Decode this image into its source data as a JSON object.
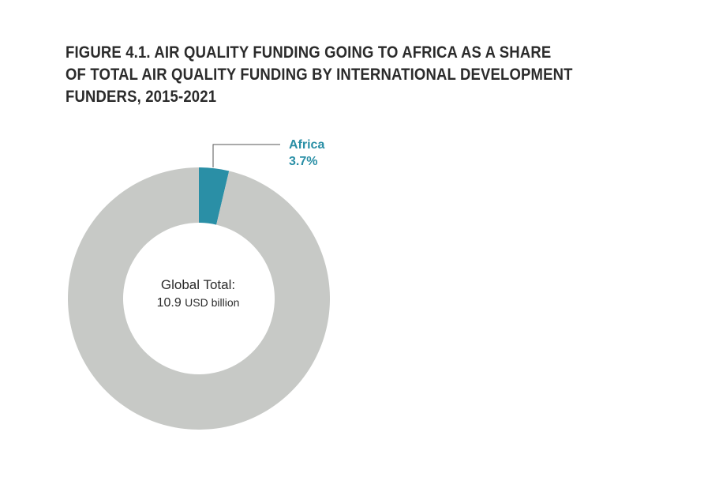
{
  "title_lines": [
    "FIGURE 4.1.  AIR QUALITY FUNDING GOING TO AFRICA AS A SHARE",
    "OF TOTAL AIR QUALITY FUNDING BY INTERNATIONAL DEVELOPMENT",
    "FUNDERS, 2015-2021"
  ],
  "center": {
    "title": "Global Total:",
    "value": "10.9",
    "unit": "USD billion"
  },
  "callout": {
    "label": "Africa",
    "value": "3.7%"
  },
  "colors": {
    "africa": "#2a8fa6",
    "rest": "#c7c9c6",
    "title": "#2b2b2b",
    "leader": "#555555"
  },
  "chart_data": {
    "type": "pie",
    "style": "donut",
    "total": 10.9,
    "total_unit": "USD billion",
    "slices": [
      {
        "label": "Africa",
        "value": 3.7,
        "display": "3.7%"
      },
      {
        "label": "",
        "value": 96.3
      }
    ],
    "start_angle_deg": 0,
    "direction": "clockwise",
    "legend": "none"
  }
}
